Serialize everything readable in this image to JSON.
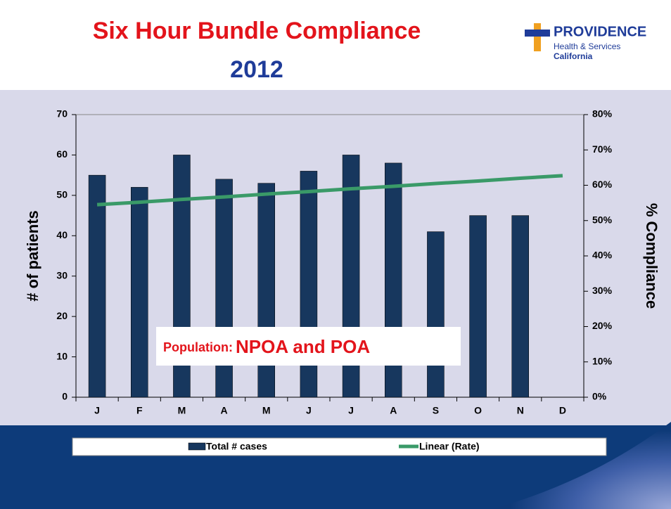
{
  "chart_data": {
    "title": "Six Hour Bundle Compliance",
    "subtitle": "2012",
    "categories": [
      "J",
      "F",
      "M",
      "A",
      "M",
      "J",
      "J",
      "A",
      "S",
      "O",
      "N",
      "D"
    ],
    "series": [
      {
        "name": "Total # cases",
        "type": "bar",
        "color": "#17375e",
        "values": [
          55,
          52,
          60,
          54,
          53,
          56,
          60,
          58,
          41,
          45,
          45,
          null
        ]
      },
      {
        "name": "Linear (Rate)",
        "type": "line",
        "axis": "y2",
        "color": "#3a9a68",
        "values": [
          54.5,
          55.2,
          56.0,
          56.7,
          57.5,
          58.2,
          59.0,
          59.7,
          60.5,
          61.2,
          62.0,
          62.7
        ]
      }
    ],
    "ylabel": "# of patients",
    "y2label": "% Compliance",
    "ylim": [
      0,
      70
    ],
    "yticks": [
      0,
      10,
      20,
      30,
      40,
      50,
      60,
      70
    ],
    "y2lim": [
      0,
      80
    ],
    "y2ticks": [
      {
        "value": 0,
        "label": "0%"
      },
      {
        "value": 10,
        "label": "10%"
      },
      {
        "value": 20,
        "label": "20%"
      },
      {
        "value": 30,
        "label": "30%"
      },
      {
        "value": 40,
        "label": "40%"
      },
      {
        "value": 50,
        "label": "50%"
      },
      {
        "value": 60,
        "label": "60%"
      },
      {
        "value": 70,
        "label": "70%"
      },
      {
        "value": 80,
        "label": "80%"
      }
    ],
    "annotation": [
      "Population:",
      "NPOA and POA"
    ],
    "legend": "bottom"
  },
  "logo": {
    "name": "PROVIDENCE",
    "line1": "Health & Services",
    "line2": "California"
  }
}
